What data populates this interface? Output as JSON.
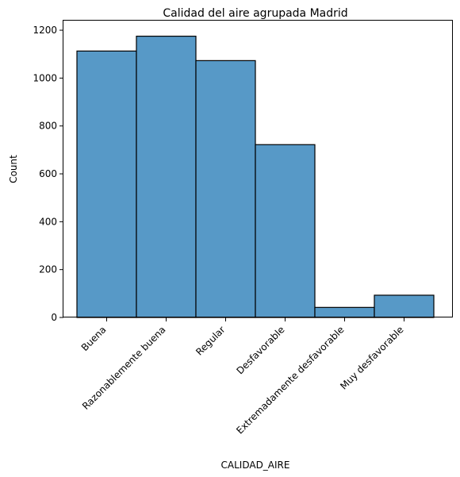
{
  "chart_data": {
    "type": "bar",
    "title": "Calidad del aire agrupada Madrid",
    "xlabel": "CALIDAD_AIRE",
    "ylabel": "Count",
    "categories": [
      "Buena",
      "Razonablemente buena",
      "Regular",
      "Desfavorable",
      "Extremadamente desfavorable",
      "Muy desfavorable"
    ],
    "values": [
      1113,
      1175,
      1073,
      722,
      42,
      93
    ],
    "ylim": [
      0,
      1240
    ],
    "yticks": [
      0,
      200,
      400,
      600,
      800,
      1000,
      1200
    ],
    "grid": false,
    "bar_color": "#5799c7",
    "edge_color": "#000000"
  }
}
